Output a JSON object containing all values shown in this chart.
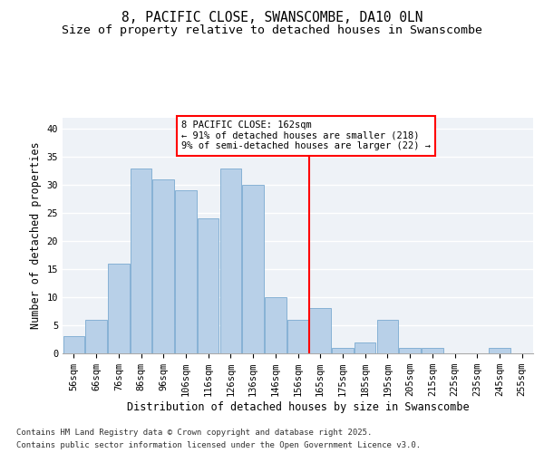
{
  "title_line1": "8, PACIFIC CLOSE, SWANSCOMBE, DA10 0LN",
  "title_line2": "Size of property relative to detached houses in Swanscombe",
  "xlabel": "Distribution of detached houses by size in Swanscombe",
  "ylabel": "Number of detached properties",
  "categories": [
    "56sqm",
    "66sqm",
    "76sqm",
    "86sqm",
    "96sqm",
    "106sqm",
    "116sqm",
    "126sqm",
    "136sqm",
    "146sqm",
    "156sqm",
    "165sqm",
    "175sqm",
    "185sqm",
    "195sqm",
    "205sqm",
    "215sqm",
    "225sqm",
    "235sqm",
    "245sqm",
    "255sqm"
  ],
  "values": [
    3,
    6,
    16,
    33,
    31,
    29,
    24,
    33,
    30,
    10,
    6,
    8,
    1,
    2,
    6,
    1,
    1,
    0,
    0,
    1,
    0
  ],
  "bar_color": "#b8d0e8",
  "bar_edge_color": "#7aaad0",
  "background_color": "#eef2f7",
  "grid_color": "#ffffff",
  "vline_index": 11,
  "annotation_title": "8 PACIFIC CLOSE: 162sqm",
  "annotation_line2": "← 91% of detached houses are smaller (218)",
  "annotation_line3": "9% of semi-detached houses are larger (22) →",
  "ylim": [
    0,
    42
  ],
  "yticks": [
    0,
    5,
    10,
    15,
    20,
    25,
    30,
    35,
    40
  ],
  "footnote_line1": "Contains HM Land Registry data © Crown copyright and database right 2025.",
  "footnote_line2": "Contains public sector information licensed under the Open Government Licence v3.0.",
  "title_fontsize": 10.5,
  "subtitle_fontsize": 9.5,
  "axis_label_fontsize": 8.5,
  "tick_fontsize": 7.5,
  "annotation_fontsize": 7.5,
  "footnote_fontsize": 6.5
}
